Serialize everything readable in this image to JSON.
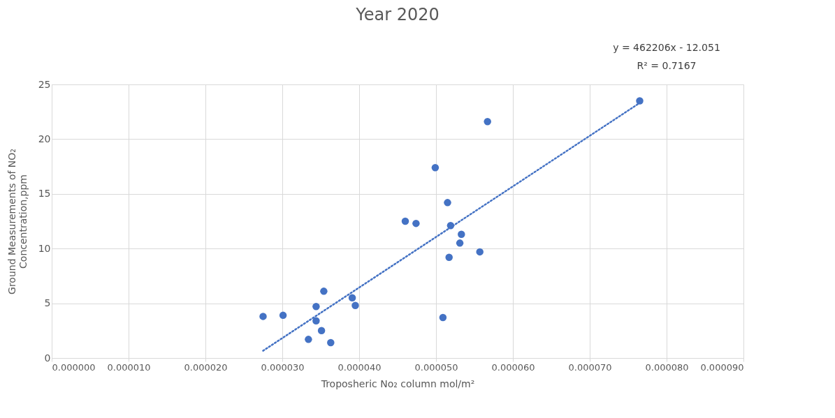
{
  "chart_data": {
    "type": "scatter",
    "title": "Year 2020",
    "xlabel": "Troposheric No₂ column mol/m²",
    "ylabel": "Ground Measurements of NO₂\nConcentration,ppm",
    "annotations": [
      "y = 462206x - 12.051",
      "R² = 0.7167"
    ],
    "xlim": [
      0,
      9e-05
    ],
    "ylim": [
      0,
      25
    ],
    "xticks": [
      {
        "value": 0,
        "label": "0.000000"
      },
      {
        "value": 1e-05,
        "label": "0.000010"
      },
      {
        "value": 2e-05,
        "label": "0.000020"
      },
      {
        "value": 3e-05,
        "label": "0.000030"
      },
      {
        "value": 4e-05,
        "label": "0.000040"
      },
      {
        "value": 5e-05,
        "label": "0.000050"
      },
      {
        "value": 6e-05,
        "label": "0.000060"
      },
      {
        "value": 7e-05,
        "label": "0.000070"
      },
      {
        "value": 8e-05,
        "label": "0.000080"
      },
      {
        "value": 9e-05,
        "label": "0.000090"
      }
    ],
    "yticks": [
      0,
      5,
      10,
      15,
      20,
      25
    ],
    "grid": true,
    "marker": "circle",
    "series": [
      {
        "color": "#4472c4",
        "x": [
          2.75e-05,
          3.01e-05,
          3.44e-05,
          3.54e-05,
          3.44e-05,
          3.51e-05,
          3.34e-05,
          3.63e-05,
          3.91e-05,
          3.95e-05,
          4.6e-05,
          4.74e-05,
          4.99e-05,
          5.15e-05,
          5.19e-05,
          5.33e-05,
          5.31e-05,
          5.17e-05,
          5.57e-05,
          5.09e-05,
          5.67e-05,
          7.65e-05
        ],
        "values": [
          3.8,
          3.9,
          4.7,
          6.1,
          3.4,
          2.5,
          1.7,
          1.4,
          5.5,
          4.8,
          12.5,
          12.3,
          17.4,
          14.2,
          12.1,
          11.3,
          10.5,
          9.2,
          9.7,
          3.7,
          21.6,
          23.5
        ]
      },
      {
        "type": "line",
        "color": "#4472c4",
        "line_style": "dotted",
        "marker": "none",
        "x": [
          2.75e-05,
          7.65e-05
        ],
        "values": [
          0.66,
          23.31
        ]
      }
    ]
  }
}
